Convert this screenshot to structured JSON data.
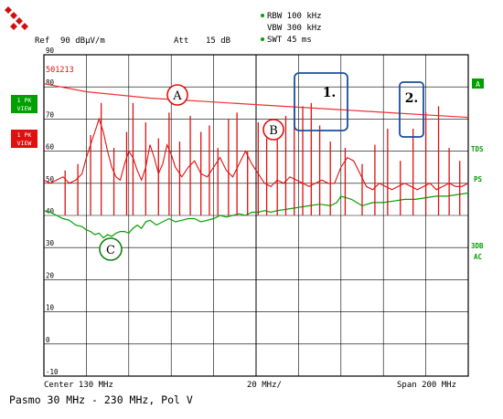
{
  "header": {
    "ref_label": "Ref",
    "ref_value": "90 dBµV/m",
    "att_label": "Att",
    "att_value": "15 dB",
    "rbw": "RBW 100 kHz",
    "vbw": "VBW 300 kHz",
    "swt": "SWT 45 ms",
    "marker_readout": "501213"
  },
  "traces_side": {
    "trace1_line1": "1 PK",
    "trace1_line2": "VIEW",
    "trace2_line1": "1 PK",
    "trace2_line2": "VIEW"
  },
  "right_labels": {
    "a": "A",
    "tds": "TDS",
    "ps": "PS",
    "db3": "3DB",
    "ac": "AC"
  },
  "footer": {
    "center": "Center 130 MHz",
    "div": "20 MHz/",
    "span": "Span 200 MHz",
    "caption": "Pasmo 30 MHz - 230 MHz, Pol V"
  },
  "annotations": {
    "A": "A",
    "B": "B",
    "C": "C",
    "box1": "1.",
    "box2": "2."
  },
  "colors": {
    "green": "#00a000",
    "red": "#e01010",
    "limit": "#f03030",
    "box": "#1a4f9c",
    "grid": "#000000"
  },
  "chart_data": {
    "type": "line",
    "xlim": [
      30,
      230
    ],
    "ylim": [
      -10,
      90
    ],
    "x_unit": "MHz",
    "y_unit": "dBµV/m",
    "y_ticks": [
      90,
      80,
      70,
      60,
      50,
      40,
      30,
      20,
      10,
      0,
      -10
    ],
    "grid": true,
    "limit_line": {
      "x": [
        30,
        50,
        80,
        130,
        180,
        230
      ],
      "y": [
        81,
        78.5,
        76.5,
        74.5,
        72.5,
        70.5
      ]
    },
    "peak_envelope": {
      "x": [
        30,
        33,
        36,
        39,
        42,
        45,
        48,
        50,
        52,
        54,
        56,
        58,
        60,
        62,
        64,
        66,
        68,
        70,
        72,
        74,
        76,
        78,
        80,
        82,
        84,
        86,
        88,
        90,
        92,
        95,
        98,
        101,
        104,
        107,
        110,
        113,
        116,
        119,
        122,
        125,
        128,
        131,
        134,
        137,
        140,
        143,
        146,
        149,
        152,
        155,
        158,
        161,
        164,
        167,
        170,
        173,
        176,
        179,
        182,
        185,
        188,
        191,
        194,
        197,
        200,
        203,
        206,
        209,
        212,
        215,
        218,
        221,
        224,
        227,
        230
      ],
      "y": [
        51,
        50,
        51,
        52,
        50,
        51,
        53,
        58,
        62,
        66,
        70,
        66,
        60,
        55,
        52,
        51,
        56,
        60,
        58,
        54,
        51,
        55,
        62,
        58,
        53,
        56,
        62,
        59,
        55,
        52,
        55,
        57,
        53,
        52,
        55,
        58,
        54,
        52,
        56,
        60,
        56,
        53,
        50,
        49,
        51,
        50,
        52,
        51,
        50,
        49,
        50,
        51,
        50,
        50,
        55,
        58,
        57,
        53,
        49,
        48,
        50,
        49,
        48,
        49,
        50,
        49,
        48,
        49,
        50,
        48,
        49,
        50,
        49,
        49,
        50
      ]
    },
    "peak_spikes": {
      "x": [
        40,
        46,
        52,
        57,
        63,
        69,
        72,
        78,
        84,
        89,
        94,
        99,
        104,
        108,
        112,
        117,
        121,
        126,
        131,
        135,
        140,
        144,
        148,
        152,
        156,
        160,
        165,
        172,
        180,
        186,
        192,
        198,
        204,
        210,
        216,
        221,
        226
      ],
      "y": [
        54,
        56,
        65,
        75,
        61,
        66,
        75,
        69,
        64,
        72,
        63,
        71,
        66,
        68,
        61,
        70,
        72,
        60,
        69,
        64,
        66,
        71,
        74,
        74,
        75,
        68,
        63,
        61,
        56,
        62,
        67,
        57,
        67,
        72,
        74,
        61,
        57
      ]
    },
    "average_trace": {
      "x": [
        30,
        33,
        36,
        39,
        42,
        45,
        48,
        50,
        52,
        54,
        56,
        58,
        60,
        62,
        64,
        66,
        68,
        70,
        72,
        74,
        76,
        78,
        80,
        83,
        86,
        89,
        92,
        95,
        98,
        101,
        104,
        107,
        110,
        113,
        116,
        119,
        122,
        125,
        128,
        131,
        134,
        137,
        140,
        145,
        150,
        155,
        160,
        165,
        168,
        170,
        175,
        180,
        185,
        190,
        195,
        200,
        205,
        210,
        215,
        220,
        225,
        230
      ],
      "y": [
        41.5,
        41,
        40,
        39,
        38.5,
        37,
        36.5,
        35.5,
        35,
        34,
        34.5,
        33,
        34,
        33.5,
        34.5,
        35,
        35,
        34.5,
        36,
        37,
        36,
        38,
        38.5,
        37,
        38,
        39,
        38,
        38.5,
        39,
        39,
        38,
        38.5,
        39,
        40,
        39.5,
        40,
        40.5,
        40,
        41,
        41,
        41.5,
        41,
        41.5,
        42,
        42.5,
        43,
        43.5,
        43,
        44,
        46,
        45,
        43,
        44,
        44,
        44.5,
        45,
        45,
        45.5,
        46,
        46,
        46.5,
        47
      ]
    }
  }
}
